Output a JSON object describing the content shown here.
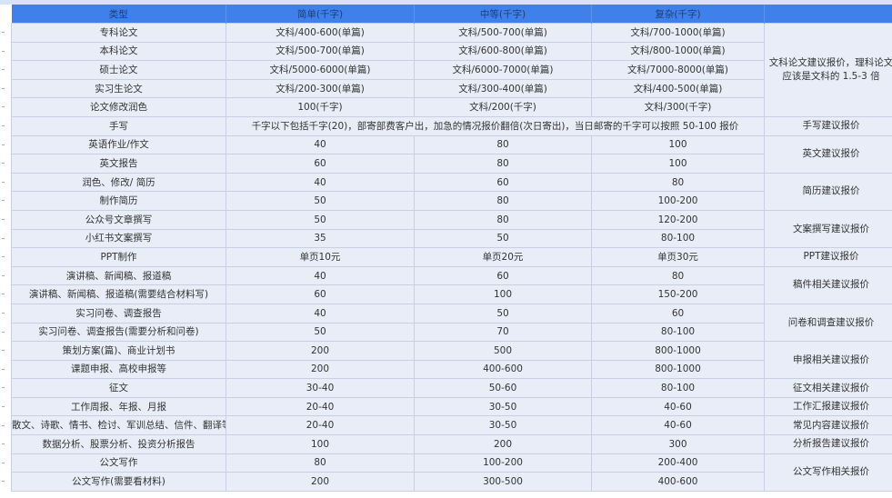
{
  "header": [
    "类型",
    "简单(千字)",
    "中等(千字)",
    "复杂(千字)",
    ""
  ],
  "rows": [
    [
      "专科论文",
      "文科/400-600(单篇)",
      "文科/500-700(单篇)",
      "文科/700-1000(单篇)"
    ],
    [
      "本科论文",
      "文科/500-700(单篇)",
      "文科/600-800(单篇)",
      "文科/800-1000(单篇)"
    ],
    [
      "硕士论文",
      "文科/5000-6000(单篇)",
      "文科/6000-7000(单篇)",
      "文科/7000-8000(单篇)"
    ],
    [
      "实习生论文",
      "文科/200-300(单篇)",
      "文科/300-400(单篇)",
      "文科/400-500(单篇)"
    ],
    [
      "论文修改润色",
      "100(千字)",
      "文科/200(千字)",
      "文科/300(千字)"
    ],
    [
      "手写",
      "千字以下包括千字(20)，部寄部费客户出，加急的情况报价翻倍(次日寄出)，当日邮寄的千字可以按照 50-100 报价"
    ],
    [
      "英语作业/作文",
      "40",
      "80",
      "100"
    ],
    [
      "英文报告",
      "60",
      "80",
      "100"
    ],
    [
      "润色、修改/ 简历",
      "40",
      "60",
      "80"
    ],
    [
      "制作简历",
      "50",
      "80",
      "100-200"
    ],
    [
      "公众号文章撰写",
      "50",
      "80",
      "120-200"
    ],
    [
      "小红书文案撰写",
      "35",
      "50",
      "80-100"
    ],
    [
      "PPT制作",
      "单页10元",
      "单页20元",
      "单页30元"
    ],
    [
      "演讲稿、新闻稿、报道稿",
      "40",
      "60",
      "80"
    ],
    [
      "演讲稿、新闻稿、报道稿(需要结合材料写)",
      "60",
      "100",
      "150-200"
    ],
    [
      "实习问卷、调查报告",
      "40",
      "50",
      "60"
    ],
    [
      "实习问卷、调查报告(需要分析和问卷)",
      "50",
      "70",
      "80-100"
    ],
    [
      "策划方案(篇)、商业计划书",
      "200",
      "500",
      "800-1000"
    ],
    [
      "课题申报、高校申报等",
      "200",
      "400-600",
      "800-1000"
    ],
    [
      "征文",
      "30-40",
      "50-60",
      "80-100"
    ],
    [
      "工作周报、年报、月报",
      "20-40",
      "30-50",
      "40-60"
    ],
    [
      "散文、诗歌、情书、检讨、军训总结、信件、翻译等",
      "20-40",
      "30-50",
      "40-60"
    ],
    [
      "数据分析、股票分析、投资分析报告",
      "100",
      "200",
      "300"
    ],
    [
      "公文写作",
      "80",
      "100-200",
      "200-400"
    ],
    [
      "公文写作(需要看材料)",
      "200",
      "300-500",
      "400-600"
    ]
  ],
  "notes": [
    {
      "text": "文科论文建议报价，理科论文应该是文科的 1.5-3 倍",
      "span": 5
    },
    {
      "text": "手写建议报价",
      "span": 1
    },
    {
      "text": "英文建议报价",
      "span": 2
    },
    {
      "text": "简历建议报价",
      "span": 2
    },
    {
      "text": "文案撰写建议报价",
      "span": 2
    },
    {
      "text": "PPT建议报价",
      "span": 1
    },
    {
      "text": "稿件相关建议报价",
      "span": 2
    },
    {
      "text": "问卷和调查建议报价",
      "span": 2
    },
    {
      "text": "申报相关建议报价",
      "span": 2
    },
    {
      "text": "征文相关建议报价",
      "span": 1
    },
    {
      "text": "工作汇报建议报价",
      "span": 1
    },
    {
      "text": "常见内容建议报价",
      "span": 1
    },
    {
      "text": "分析报告建议报价",
      "span": 1
    },
    {
      "text": "公文写作相关报价",
      "span": 2
    }
  ],
  "colors": {
    "header_bg": "#3f80ea",
    "cell_bg": "#e9edf8",
    "border": "#c9cfe2"
  }
}
